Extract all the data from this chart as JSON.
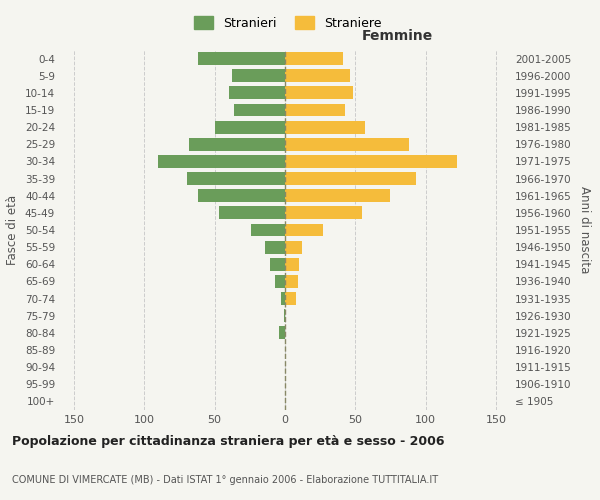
{
  "age_groups": [
    "100+",
    "95-99",
    "90-94",
    "85-89",
    "80-84",
    "75-79",
    "70-74",
    "65-69",
    "60-64",
    "55-59",
    "50-54",
    "45-49",
    "40-44",
    "35-39",
    "30-34",
    "25-29",
    "20-24",
    "15-19",
    "10-14",
    "5-9",
    "0-4"
  ],
  "birth_years": [
    "≤ 1905",
    "1906-1910",
    "1911-1915",
    "1916-1920",
    "1921-1925",
    "1926-1930",
    "1931-1935",
    "1936-1940",
    "1941-1945",
    "1946-1950",
    "1951-1955",
    "1956-1960",
    "1961-1965",
    "1966-1970",
    "1971-1975",
    "1976-1980",
    "1981-1985",
    "1986-1990",
    "1991-1995",
    "1996-2000",
    "2001-2005"
  ],
  "males": [
    0,
    0,
    0,
    0,
    4,
    1,
    3,
    7,
    11,
    14,
    24,
    47,
    62,
    70,
    90,
    68,
    50,
    36,
    40,
    38,
    62
  ],
  "females": [
    0,
    0,
    0,
    0,
    0,
    0,
    8,
    9,
    10,
    12,
    27,
    55,
    75,
    93,
    122,
    88,
    57,
    43,
    48,
    46,
    41
  ],
  "male_color": "#6a9d5a",
  "female_color": "#f5bc3b",
  "background_color": "#f5f5f0",
  "grid_color": "#cccccc",
  "center_line_color": "#888866",
  "title": "Popolazione per cittadinanza straniera per età e sesso - 2006",
  "subtitle": "COMUNE DI VIMERCATE (MB) - Dati ISTAT 1° gennaio 2006 - Elaborazione TUTTITALIA.IT",
  "xlabel_right": "Femmine",
  "ylabel_left": "Fasce di età",
  "ylabel_right": "Anni di nascita",
  "legend_male": "Stranieri",
  "legend_female": "Straniere",
  "xlim": 160
}
